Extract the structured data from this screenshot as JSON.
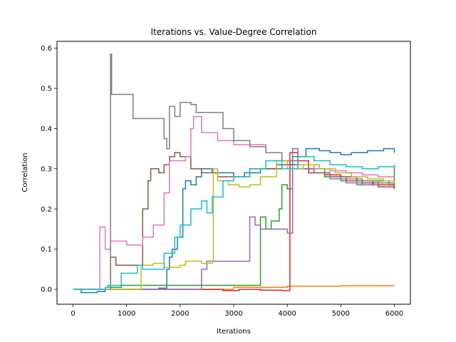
{
  "chart_data": {
    "type": "line",
    "title": "Iterations vs. Value-Degree Correlation",
    "xlabel": "Iterations",
    "ylabel": "Correlation",
    "xlim": [
      -300,
      6300
    ],
    "ylim": [
      -0.037,
      0.617
    ],
    "xticks": [
      0,
      1000,
      2000,
      3000,
      4000,
      5000,
      6000
    ],
    "xtick_labels": [
      "0",
      "1000",
      "2000",
      "3000",
      "4000",
      "5000",
      "6000"
    ],
    "yticks": [
      0.0,
      0.1,
      0.2,
      0.3,
      0.4,
      0.5,
      0.6
    ],
    "ytick_labels": [
      "0.0",
      "0.1",
      "0.2",
      "0.3",
      "0.4",
      "0.5",
      "0.6"
    ],
    "grid": false,
    "legend": "none",
    "series": [
      {
        "color": "#1f77b4",
        "step": true,
        "points": [
          [
            0,
            0
          ],
          [
            150,
            -0.008
          ],
          [
            450,
            -0.005
          ],
          [
            600,
            0.0
          ],
          [
            1600,
            0.003
          ],
          [
            1750,
            0.05
          ],
          [
            1800,
            0.08
          ],
          [
            1850,
            0.1
          ],
          [
            1950,
            0.13
          ],
          [
            2050,
            0.25
          ],
          [
            2100,
            0.27
          ],
          [
            2200,
            0.26
          ],
          [
            2300,
            0.28
          ],
          [
            2400,
            0.3
          ],
          [
            2600,
            0.29
          ],
          [
            2800,
            0.29
          ],
          [
            3000,
            0.28
          ],
          [
            3200,
            0.29
          ],
          [
            3500,
            0.3
          ],
          [
            3800,
            0.31
          ],
          [
            4000,
            0.31
          ],
          [
            4200,
            0.33
          ],
          [
            4350,
            0.35
          ],
          [
            4600,
            0.345
          ],
          [
            4800,
            0.34
          ],
          [
            5000,
            0.335
          ],
          [
            5200,
            0.34
          ],
          [
            5500,
            0.345
          ],
          [
            5800,
            0.35
          ],
          [
            6000,
            0.34
          ]
        ]
      },
      {
        "color": "#ff7f0e",
        "step": true,
        "points": [
          [
            0,
            0
          ],
          [
            2000,
            0.0
          ],
          [
            3000,
            0.005
          ],
          [
            4000,
            0.008
          ],
          [
            5000,
            0.009
          ],
          [
            6000,
            0.009
          ]
        ]
      },
      {
        "color": "#2ca02c",
        "step": true,
        "points": [
          [
            0,
            0
          ],
          [
            600,
            0.005
          ],
          [
            900,
            0.01
          ],
          [
            3300,
            0.01
          ],
          [
            3500,
            0.18
          ],
          [
            3600,
            0.15
          ],
          [
            3700,
            0.17
          ],
          [
            3850,
            0.2
          ],
          [
            3900,
            0.26
          ],
          [
            4000,
            0.25
          ],
          [
            4100,
            0.33
          ],
          [
            4200,
            0.31
          ],
          [
            4400,
            0.3
          ],
          [
            4700,
            0.28
          ],
          [
            5000,
            0.27
          ],
          [
            5300,
            0.26
          ],
          [
            5600,
            0.27
          ],
          [
            5900,
            0.26
          ],
          [
            6000,
            0.31
          ]
        ]
      },
      {
        "color": "#d62728",
        "step": true,
        "points": [
          [
            0,
            0
          ],
          [
            2800,
            -0.003
          ],
          [
            3100,
            0.0
          ],
          [
            3500,
            -0.002
          ],
          [
            3900,
            -0.003
          ],
          [
            4050,
            0.34
          ],
          [
            4200,
            0.32
          ],
          [
            4400,
            0.29
          ],
          [
            4700,
            0.285
          ],
          [
            5000,
            0.28
          ],
          [
            5300,
            0.27
          ],
          [
            5600,
            0.26
          ],
          [
            6000,
            0.25
          ]
        ]
      },
      {
        "color": "#9467bd",
        "step": true,
        "points": [
          [
            0,
            0
          ],
          [
            2300,
            0.0
          ],
          [
            2400,
            0.05
          ],
          [
            2500,
            0.07
          ],
          [
            3200,
            0.07
          ],
          [
            3300,
            0.18
          ],
          [
            3400,
            0.16
          ],
          [
            3500,
            0.15
          ],
          [
            4000,
            0.14
          ],
          [
            4100,
            0.35
          ],
          [
            4200,
            0.3
          ],
          [
            4500,
            0.29
          ],
          [
            4800,
            0.275
          ],
          [
            5100,
            0.265
          ],
          [
            5400,
            0.26
          ],
          [
            5700,
            0.255
          ],
          [
            6000,
            0.25
          ]
        ]
      },
      {
        "color": "#8c564b",
        "step": true,
        "points": [
          [
            0,
            0
          ],
          [
            650,
            0.0
          ],
          [
            700,
            0.08
          ],
          [
            800,
            0.06
          ],
          [
            1300,
            0.2
          ],
          [
            1400,
            0.27
          ],
          [
            1450,
            0.3
          ],
          [
            1600,
            0.29
          ],
          [
            1700,
            0.31
          ],
          [
            1800,
            0.33
          ],
          [
            1900,
            0.34
          ],
          [
            2000,
            0.33
          ],
          [
            2200,
            0.3
          ],
          [
            2400,
            0.29
          ],
          [
            2700,
            0.28
          ],
          [
            3000,
            0.28
          ],
          [
            3300,
            0.3
          ],
          [
            3600,
            0.3
          ],
          [
            3900,
            0.31
          ],
          [
            4200,
            0.3
          ],
          [
            4500,
            0.29
          ],
          [
            4800,
            0.28
          ],
          [
            5100,
            0.27
          ],
          [
            5400,
            0.265
          ],
          [
            5700,
            0.255
          ],
          [
            6000,
            0.25
          ]
        ]
      },
      {
        "color": "#e377c2",
        "step": true,
        "points": [
          [
            0,
            0
          ],
          [
            450,
            0.0
          ],
          [
            500,
            0.155
          ],
          [
            600,
            0.1
          ],
          [
            700,
            0.12
          ],
          [
            1000,
            0.11
          ],
          [
            1300,
            0.13
          ],
          [
            1500,
            0.16
          ],
          [
            1700,
            0.24
          ],
          [
            1800,
            0.32
          ],
          [
            2100,
            0.33
          ],
          [
            2200,
            0.4
          ],
          [
            2250,
            0.43
          ],
          [
            2400,
            0.39
          ],
          [
            2700,
            0.37
          ],
          [
            3000,
            0.36
          ],
          [
            3300,
            0.36
          ],
          [
            3600,
            0.34
          ],
          [
            3900,
            0.32
          ],
          [
            4200,
            0.31
          ],
          [
            4500,
            0.3
          ],
          [
            4800,
            0.295
          ],
          [
            5100,
            0.29
          ],
          [
            5400,
            0.285
          ],
          [
            5700,
            0.28
          ],
          [
            6000,
            0.28
          ]
        ]
      },
      {
        "color": "#7f7f7f",
        "step": true,
        "points": [
          [
            0,
            0
          ],
          [
            650,
            0.0
          ],
          [
            700,
            0.585
          ],
          [
            720,
            0.485
          ],
          [
            1100,
            0.485
          ],
          [
            1120,
            0.425
          ],
          [
            1700,
            0.375
          ],
          [
            1750,
            0.35
          ],
          [
            1800,
            0.455
          ],
          [
            1900,
            0.43
          ],
          [
            2000,
            0.465
          ],
          [
            2200,
            0.46
          ],
          [
            2300,
            0.44
          ],
          [
            2700,
            0.44
          ],
          [
            2800,
            0.4
          ],
          [
            3000,
            0.37
          ],
          [
            3300,
            0.355
          ],
          [
            3600,
            0.34
          ],
          [
            3900,
            0.32
          ],
          [
            4200,
            0.3
          ],
          [
            4500,
            0.29
          ],
          [
            4800,
            0.28
          ],
          [
            5100,
            0.275
          ],
          [
            5400,
            0.27
          ],
          [
            5700,
            0.265
          ],
          [
            6000,
            0.265
          ]
        ]
      },
      {
        "color": "#bcbd22",
        "step": true,
        "points": [
          [
            0,
            0
          ],
          [
            1250,
            0.0
          ],
          [
            1270,
            0.06
          ],
          [
            1500,
            0.065
          ],
          [
            1700,
            0.055
          ],
          [
            2000,
            0.06
          ],
          [
            2100,
            0.07
          ],
          [
            2400,
            0.065
          ],
          [
            2600,
            0.07
          ],
          [
            2620,
            0.3
          ],
          [
            2700,
            0.27
          ],
          [
            2900,
            0.26
          ],
          [
            3100,
            0.255
          ],
          [
            3300,
            0.26
          ],
          [
            3500,
            0.28
          ],
          [
            3800,
            0.32
          ],
          [
            4000,
            0.3
          ],
          [
            4300,
            0.31
          ],
          [
            4600,
            0.3
          ],
          [
            4900,
            0.29
          ],
          [
            5200,
            0.28
          ],
          [
            5500,
            0.275
          ],
          [
            5800,
            0.27
          ],
          [
            6000,
            0.265
          ]
        ]
      },
      {
        "color": "#17becf",
        "step": true,
        "points": [
          [
            0,
            0
          ],
          [
            600,
            0.005
          ],
          [
            650,
            0.01
          ],
          [
            900,
            0.04
          ],
          [
            1200,
            0.06
          ],
          [
            1300,
            0.05
          ],
          [
            1700,
            0.09
          ],
          [
            1900,
            0.13
          ],
          [
            2000,
            0.16
          ],
          [
            2200,
            0.2
          ],
          [
            2400,
            0.22
          ],
          [
            2500,
            0.19
          ],
          [
            2600,
            0.23
          ],
          [
            2800,
            0.27
          ],
          [
            3000,
            0.28
          ],
          [
            3300,
            0.3
          ],
          [
            3600,
            0.32
          ],
          [
            3900,
            0.3
          ],
          [
            4200,
            0.33
          ],
          [
            4500,
            0.32
          ],
          [
            4800,
            0.31
          ],
          [
            5100,
            0.305
          ],
          [
            5400,
            0.3
          ],
          [
            5700,
            0.305
          ],
          [
            6000,
            0.31
          ]
        ]
      }
    ]
  }
}
